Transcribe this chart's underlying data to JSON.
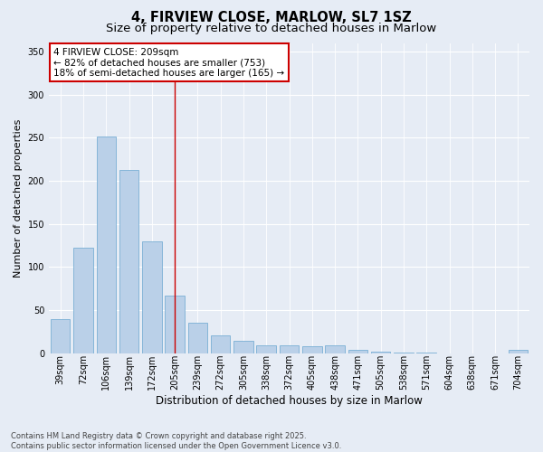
{
  "title": "4, FIRVIEW CLOSE, MARLOW, SL7 1SZ",
  "subtitle": "Size of property relative to detached houses in Marlow",
  "xlabel": "Distribution of detached houses by size in Marlow",
  "ylabel": "Number of detached properties",
  "categories": [
    "39sqm",
    "72sqm",
    "106sqm",
    "139sqm",
    "172sqm",
    "205sqm",
    "239sqm",
    "272sqm",
    "305sqm",
    "338sqm",
    "372sqm",
    "405sqm",
    "438sqm",
    "471sqm",
    "505sqm",
    "538sqm",
    "571sqm",
    "604sqm",
    "638sqm",
    "671sqm",
    "704sqm"
  ],
  "values": [
    39,
    122,
    251,
    213,
    130,
    67,
    35,
    20,
    14,
    9,
    9,
    8,
    9,
    4,
    2,
    1,
    1,
    0,
    0,
    0,
    4
  ],
  "bar_color": "#bad0e8",
  "bar_edge_color": "#7aafd4",
  "vline_index": 5,
  "vline_color": "#cc0000",
  "annotation_text": "4 FIRVIEW CLOSE: 209sqm\n← 82% of detached houses are smaller (753)\n18% of semi-detached houses are larger (165) →",
  "annotation_box_facecolor": "#ffffff",
  "annotation_box_edgecolor": "#cc0000",
  "ylim": [
    0,
    360
  ],
  "yticks": [
    0,
    50,
    100,
    150,
    200,
    250,
    300,
    350
  ],
  "bg_color": "#e6ecf5",
  "plot_bg_color": "#e6ecf5",
  "grid_color": "#ffffff",
  "footer": "Contains HM Land Registry data © Crown copyright and database right 2025.\nContains public sector information licensed under the Open Government Licence v3.0.",
  "title_fontsize": 10.5,
  "subtitle_fontsize": 9.5,
  "axis_label_fontsize": 8,
  "tick_fontsize": 7,
  "annotation_fontsize": 7.5,
  "footer_fontsize": 6
}
